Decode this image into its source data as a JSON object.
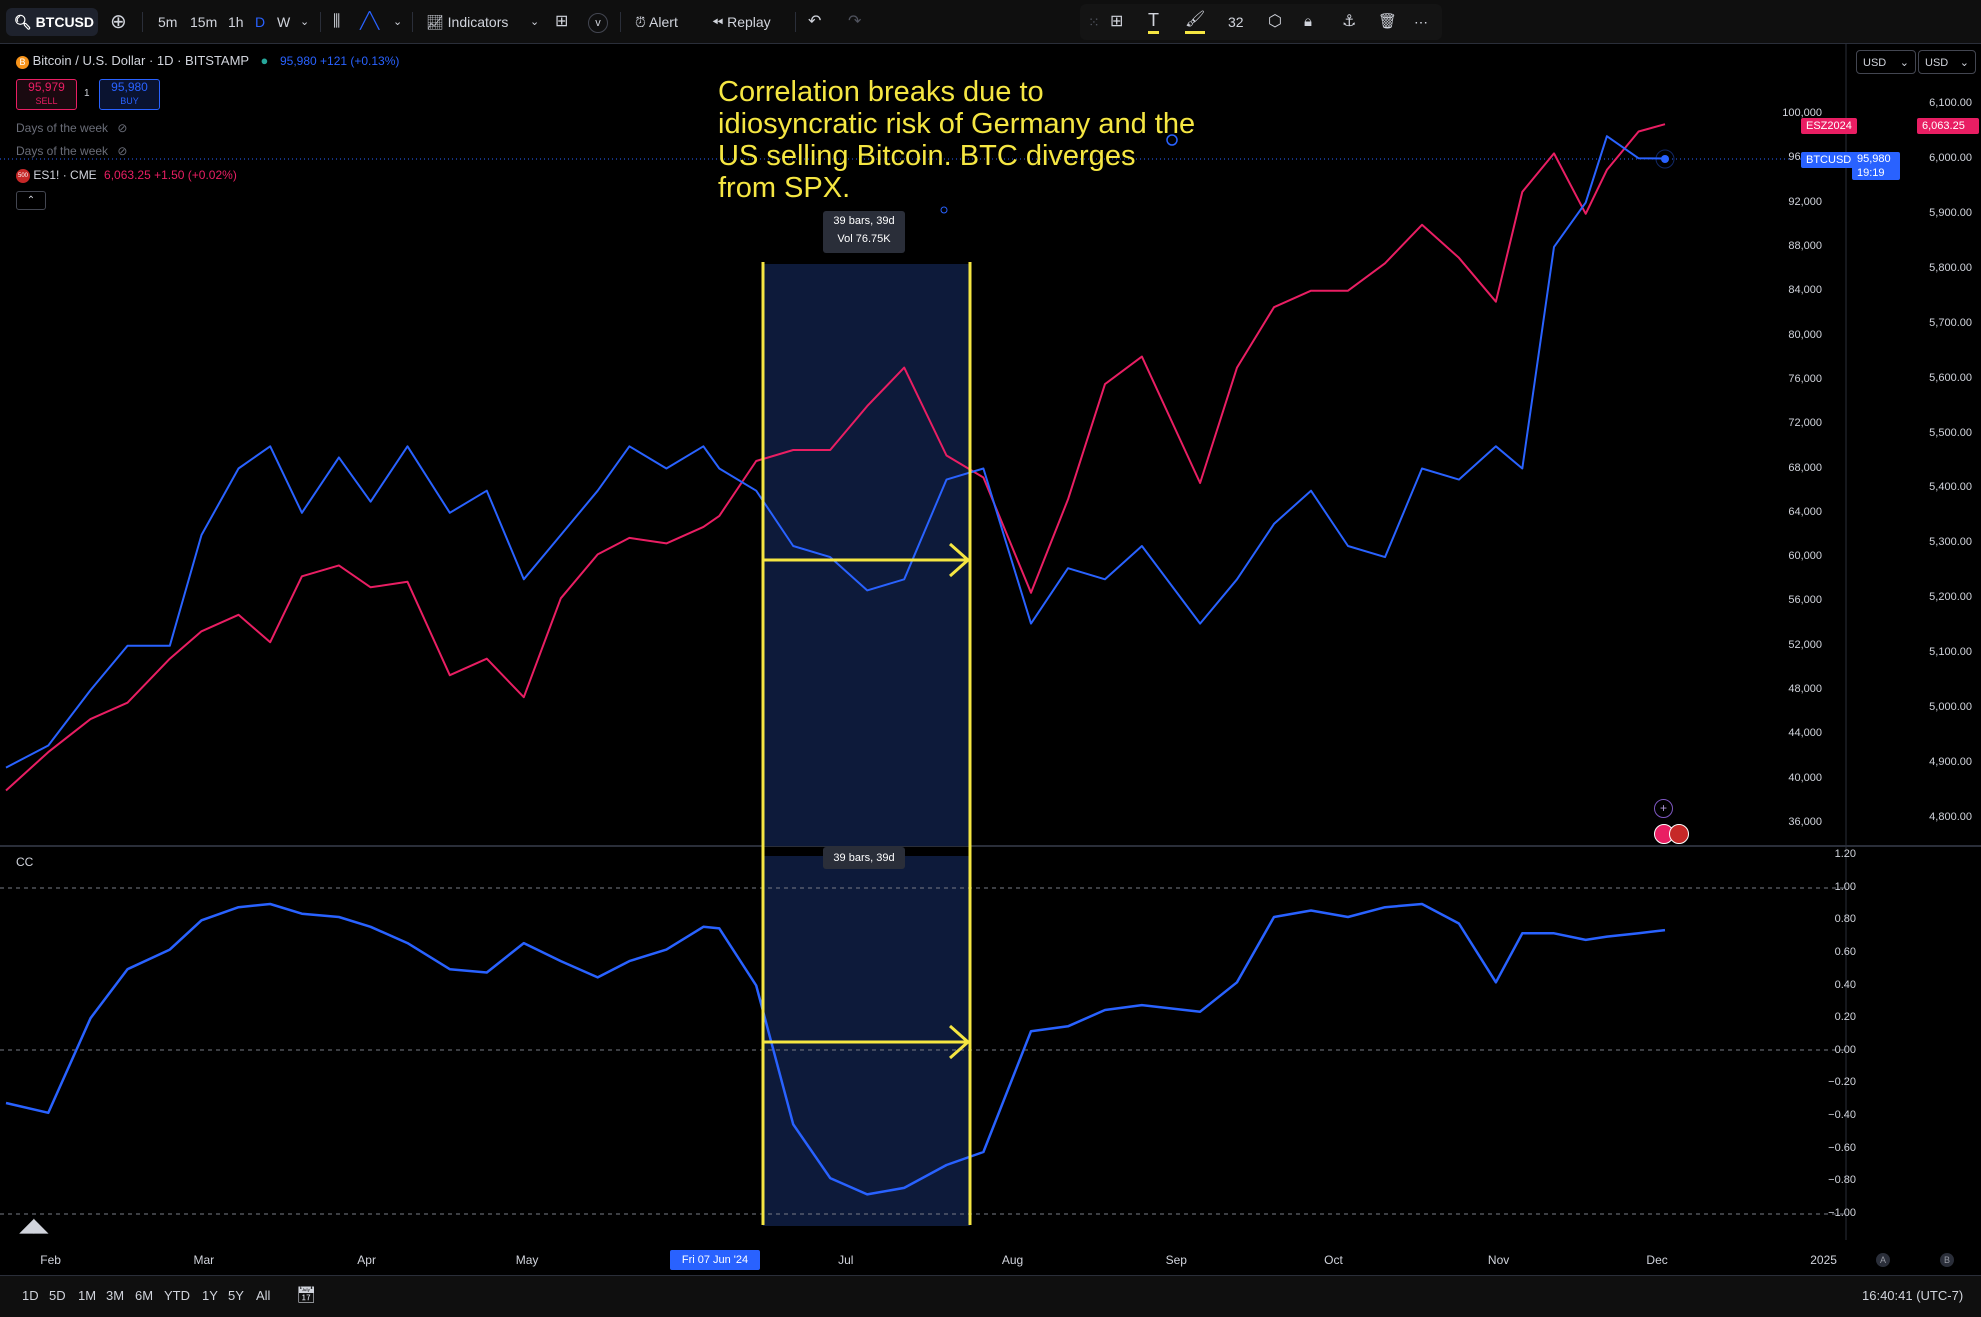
{
  "toolbar": {
    "symbol": "BTCUSD",
    "intervals": [
      "5m",
      "15m",
      "1h",
      "D",
      "W"
    ],
    "active_interval": "D",
    "indicators_label": "Indicators",
    "alert_label": "Alert",
    "replay_label": "Replay",
    "draw_size": "32"
  },
  "legend": {
    "main_title": "Bitcoin / U.S. Dollar · 1D · BITSTAMP",
    "main_values": "95,980 +121 (+0.13%)",
    "sell_price": "95,979",
    "sell_label": "SELL",
    "spread": "1",
    "buy_price": "95,980",
    "buy_label": "BUY",
    "indicator_1": "Days of the week",
    "indicator_2": "Days of the week",
    "compare_symbol": "ES1! · CME",
    "compare_badge": "500",
    "compare_values": "6,063.25 +1.50 (+0.02%)",
    "cc_label": "CC"
  },
  "annotation": "Correlation breaks due to idiosyncratic risk of Germany and the US selling Bitcoin. BTC diverges from SPX.",
  "range_tooltip": {
    "top_line1": "39 bars, 39d",
    "top_line2": "Vol 76.75K",
    "bottom": "39 bars, 39d"
  },
  "price_scale": {
    "left_currency": "USD",
    "right_currency": "USD",
    "btc_ticks": [
      "100,000",
      "96,000",
      "92,000",
      "88,000",
      "84,000",
      "80,000",
      "76,000",
      "72,000",
      "68,000",
      "64,000",
      "60,000",
      "56,000",
      "52,000",
      "48,000",
      "44,000",
      "40,000",
      "36,000"
    ],
    "es_ticks": [
      "6,100.00",
      "6,000.00",
      "5,900.00",
      "5,800.00",
      "5,700.00",
      "5,600.00",
      "5,500.00",
      "5,400.00",
      "5,300.00",
      "5,200.00",
      "5,100.00",
      "5,000.00",
      "4,900.00",
      "4,800.00"
    ],
    "cc_ticks": [
      "1.20",
      "1.00",
      "0.80",
      "0.60",
      "0.40",
      "0.20",
      "0.00",
      "−0.20",
      "−0.40",
      "−0.60",
      "−0.80",
      "−1.00"
    ],
    "es_tag_label": "ESZ2024",
    "es_tag_value": "6,063.25",
    "btc_tag_label": "BTCUSD",
    "btc_tag_value": "95,980",
    "btc_tag_countdown": "19:19"
  },
  "time_axis": {
    "labels": [
      "Feb",
      "Mar",
      "Apr",
      "May",
      "Jul",
      "Aug",
      "Sep",
      "Oct",
      "Nov",
      "Dec",
      "2025"
    ],
    "highlight": "Fri 07 Jun '24"
  },
  "bottom_bar": {
    "ranges": [
      "1D",
      "5D",
      "1M",
      "3M",
      "6M",
      "YTD",
      "1Y",
      "5Y",
      "All"
    ],
    "clock": "16:40:41 (UTC-7)"
  },
  "colors": {
    "btc": "#2962ff",
    "es": "#e91e63",
    "cc": "#2962ff",
    "annotation": "#f5e642",
    "range_fill": "#0d1a3a"
  },
  "chart_data": {
    "type": "line",
    "x": [
      "2024-01-24",
      "2024-02-01",
      "2024-02-09",
      "2024-02-16",
      "2024-02-24",
      "2024-03-01",
      "2024-03-08",
      "2024-03-14",
      "2024-03-20",
      "2024-03-27",
      "2024-04-02",
      "2024-04-09",
      "2024-04-17",
      "2024-04-24",
      "2024-05-01",
      "2024-05-08",
      "2024-05-15",
      "2024-05-21",
      "2024-05-28",
      "2024-06-04",
      "2024-06-07",
      "2024-06-14",
      "2024-06-21",
      "2024-06-28",
      "2024-07-05",
      "2024-07-12",
      "2024-07-20",
      "2024-07-27",
      "2024-08-05",
      "2024-08-12",
      "2024-08-19",
      "2024-08-26",
      "2024-09-06",
      "2024-09-13",
      "2024-09-20",
      "2024-09-27",
      "2024-10-04",
      "2024-10-11",
      "2024-10-18",
      "2024-10-25",
      "2024-11-01",
      "2024-11-06",
      "2024-11-12",
      "2024-11-18",
      "2024-11-22",
      "2024-11-28",
      "2024-12-03"
    ],
    "series": [
      {
        "name": "BTCUSD",
        "values": [
          41000,
          43000,
          48000,
          52000,
          52000,
          62000,
          68000,
          70000,
          64000,
          69000,
          65000,
          70000,
          64000,
          66000,
          58000,
          62000,
          66000,
          70000,
          68000,
          70000,
          68000,
          66000,
          61000,
          60000,
          57000,
          58000,
          67000,
          68000,
          54000,
          59000,
          58000,
          61000,
          54000,
          58000,
          63000,
          66000,
          61000,
          60000,
          68000,
          67000,
          70000,
          68000,
          88000,
          92000,
          98000,
          96000,
          95980
        ]
      },
      {
        "name": "ES1!",
        "values": [
          4850,
          4920,
          4980,
          5010,
          5090,
          5140,
          5170,
          5120,
          5240,
          5260,
          5220,
          5230,
          5060,
          5090,
          5020,
          5200,
          5280,
          5310,
          5300,
          5330,
          5350,
          5450,
          5470,
          5470,
          5550,
          5620,
          5460,
          5420,
          5210,
          5380,
          5590,
          5640,
          5410,
          5620,
          5730,
          5760,
          5760,
          5810,
          5880,
          5820,
          5740,
          5940,
          6010,
          5900,
          5980,
          6050,
          6063.25
        ]
      },
      {
        "name": "CC",
        "values": [
          -0.32,
          -0.38,
          0.2,
          0.5,
          0.62,
          0.8,
          0.88,
          0.9,
          0.84,
          0.82,
          0.76,
          0.66,
          0.5,
          0.48,
          0.66,
          0.55,
          0.45,
          0.55,
          0.62,
          0.76,
          0.75,
          0.4,
          -0.45,
          -0.78,
          -0.88,
          -0.84,
          -0.7,
          -0.62,
          0.12,
          0.15,
          0.25,
          0.28,
          0.24,
          0.42,
          0.82,
          0.86,
          0.82,
          0.88,
          0.9,
          0.78,
          0.42,
          0.72,
          0.72,
          0.68,
          0.7,
          0.72,
          0.74
        ]
      }
    ],
    "ylim_btc": [
      36000,
      100000
    ],
    "ylim_es": [
      4800,
      6100
    ],
    "ylim_cc": [
      -1.0,
      1.2
    ],
    "range_start": "2024-06-07",
    "range_end": "2024-07-24",
    "grid": false
  }
}
